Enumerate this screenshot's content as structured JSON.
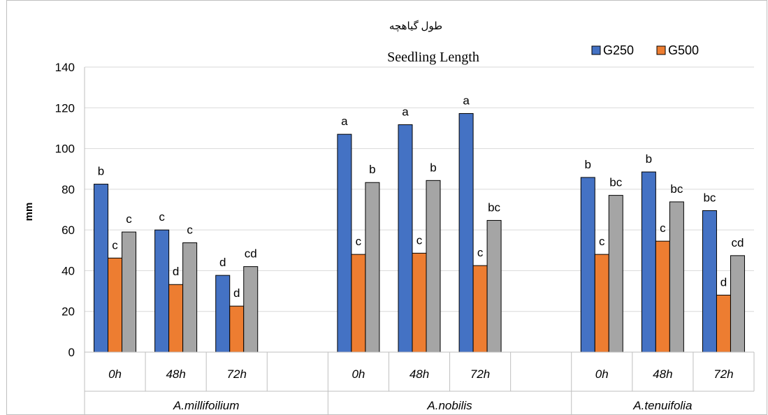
{
  "chart_data": {
    "type": "bar",
    "title_fa": "طول گیاهچه",
    "title": "Seedling Length",
    "ylabel": "mm",
    "xlabel": "",
    "ylim": [
      0,
      140
    ],
    "yticks": [
      0,
      20,
      40,
      60,
      80,
      100,
      120,
      140
    ],
    "grid": true,
    "legend_position": "top-right",
    "groups": [
      {
        "name": "A.millifoilium",
        "subcategories": [
          {
            "label": "0h",
            "values": [
              82.5,
              46.2,
              59.0
            ],
            "letters": [
              "b",
              "c",
              "c"
            ]
          },
          {
            "label": "48h",
            "values": [
              60.0,
              33.2,
              53.7
            ],
            "letters": [
              "c",
              "d",
              "c"
            ]
          },
          {
            "label": "72h",
            "values": [
              37.7,
              22.6,
              42.0
            ],
            "letters": [
              "d",
              "d",
              "cd"
            ]
          }
        ]
      },
      {
        "name": "A.nobilis",
        "subcategories": [
          {
            "label": "0h",
            "values": [
              107.0,
              48.0,
              83.3
            ],
            "letters": [
              "a",
              "c",
              "b"
            ]
          },
          {
            "label": "48h",
            "values": [
              111.7,
              48.6,
              84.3
            ],
            "letters": [
              "a",
              "c",
              "b"
            ]
          },
          {
            "label": "72h",
            "values": [
              117.2,
              42.5,
              64.7
            ],
            "letters": [
              "a",
              "c",
              "bc"
            ]
          }
        ]
      },
      {
        "name": "A.tenuifolia",
        "subcategories": [
          {
            "label": "0h",
            "values": [
              85.8,
              48.0,
              77.0
            ],
            "letters": [
              "b",
              "c",
              "bc"
            ]
          },
          {
            "label": "48h",
            "values": [
              88.5,
              54.5,
              73.8
            ],
            "letters": [
              "b",
              "c",
              "bc"
            ]
          },
          {
            "label": "72h",
            "values": [
              69.5,
              28.0,
              47.4
            ],
            "letters": [
              "bc",
              "d",
              "cd"
            ]
          }
        ]
      }
    ],
    "series": [
      {
        "name": "G250",
        "color": "#4472C4"
      },
      {
        "name": "G500",
        "color": "#ED7D31"
      },
      {
        "name": "",
        "color": "#A5A5A5"
      }
    ],
    "legend": [
      "G250",
      "G500"
    ]
  }
}
